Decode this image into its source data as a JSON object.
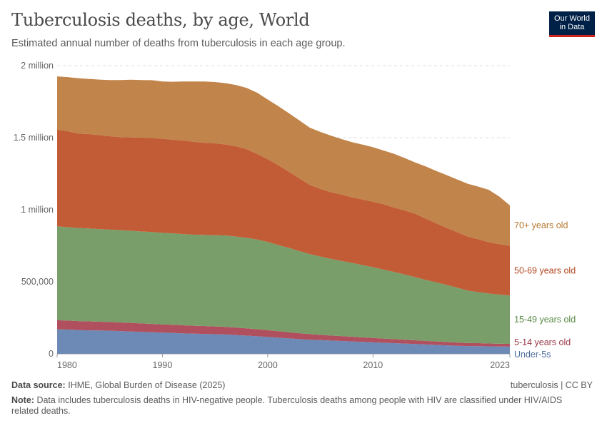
{
  "header": {
    "title": "Tuberculosis deaths, by age, World",
    "subtitle": "Estimated annual number of deaths from tuberculosis in each age group.",
    "logo_line1": "Our World",
    "logo_line2": "in Data"
  },
  "footer": {
    "source_label": "Data source:",
    "source_text": "IHME, Global Burden of Disease (2025)",
    "license": "tuberculosis | CC BY",
    "note_label": "Note:",
    "note_text": "Data includes tuberculosis deaths in HIV-negative people. Tuberculosis deaths among people with HIV are classified under HIV/AIDS related deaths."
  },
  "colors": {
    "under5": "#6d89b6",
    "age5_14": "#b0505e",
    "age15_49": "#7a9e6a",
    "age50_69": "#c25c36",
    "age70plus": "#c1844a"
  },
  "chart_data": {
    "type": "area",
    "stacked": true,
    "title": "Tuberculosis deaths, by age, World",
    "xlabel": "",
    "ylabel": "",
    "xlim": [
      1980,
      2023
    ],
    "ylim": [
      0,
      2000000
    ],
    "x_ticks": [
      1980,
      1990,
      2000,
      2010,
      2023
    ],
    "x_tick_labels": [
      "1980",
      "1990",
      "2000",
      "2010",
      "2023"
    ],
    "y_ticks": [
      0,
      500000,
      1000000,
      1500000,
      2000000
    ],
    "y_tick_labels": [
      "0",
      "500,000",
      "1 million",
      "1.5 million",
      "2 million"
    ],
    "grid": "horizontal dashed",
    "legend": "right, labels at series ends",
    "x": [
      1980,
      1981,
      1982,
      1983,
      1984,
      1985,
      1986,
      1987,
      1988,
      1989,
      1990,
      1991,
      1992,
      1993,
      1994,
      1995,
      1996,
      1997,
      1998,
      1999,
      2000,
      2001,
      2002,
      2003,
      2004,
      2005,
      2006,
      2007,
      2008,
      2009,
      2010,
      2011,
      2012,
      2013,
      2014,
      2015,
      2016,
      2017,
      2018,
      2019,
      2020,
      2021,
      2022,
      2023
    ],
    "series": [
      {
        "name": "Under-5s",
        "color_key": "under5",
        "values": [
          170000,
          168000,
          165000,
          163000,
          162000,
          160000,
          158000,
          155000,
          152000,
          150000,
          147000,
          145000,
          142000,
          140000,
          138000,
          136000,
          134000,
          130000,
          126000,
          122000,
          117000,
          112000,
          107000,
          102000,
          98000,
          95000,
          92000,
          89000,
          86000,
          83000,
          80000,
          77000,
          74000,
          71000,
          68000,
          65000,
          62000,
          59000,
          56000,
          54000,
          53000,
          52000,
          51000,
          50000
        ]
      },
      {
        "name": "5-14 years old",
        "color_key": "age5_14",
        "values": [
          63000,
          63000,
          62000,
          62000,
          61000,
          61000,
          60000,
          60000,
          59000,
          58000,
          57000,
          57000,
          56000,
          55000,
          55000,
          54000,
          53000,
          52000,
          51000,
          49000,
          47000,
          45000,
          43000,
          41000,
          39000,
          37000,
          35000,
          34000,
          33000,
          31000,
          30000,
          29000,
          28000,
          27000,
          26000,
          25000,
          24000,
          23000,
          22000,
          21000,
          21000,
          20000,
          19000,
          19000
        ]
      },
      {
        "name": "15-49 years old",
        "color_key": "age15_49",
        "values": [
          652000,
          648000,
          646000,
          645000,
          643000,
          641000,
          640000,
          639000,
          638000,
          637000,
          636000,
          634000,
          633000,
          632000,
          632000,
          633000,
          634000,
          632000,
          628000,
          622000,
          612000,
          598000,
          585000,
          570000,
          555000,
          543000,
          532000,
          522000,
          512000,
          502000,
          491000,
          479000,
          466000,
          453000,
          438000,
          423000,
          410000,
          396000,
          381000,
          364000,
          354000,
          346000,
          341000,
          336000
        ]
      },
      {
        "name": "50-69 years old",
        "color_key": "age50_69",
        "values": [
          670000,
          666000,
          655000,
          655000,
          652000,
          648000,
          646000,
          648000,
          651000,
          654000,
          652000,
          650000,
          649000,
          644000,
          640000,
          638000,
          632000,
          626000,
          615000,
          594000,
          575000,
          554000,
          530000,
          505000,
          480000,
          470000,
          463000,
          460000,
          455000,
          455000,
          455000,
          453000,
          447000,
          444000,
          441000,
          426000,
          410000,
          396000,
          385000,
          375000,
          367000,
          356000,
          350000,
          345000
        ]
      },
      {
        "name": "70+ years old",
        "color_key": "age70plus",
        "values": [
          370000,
          375000,
          385000,
          383000,
          385000,
          390000,
          396000,
          400000,
          400000,
          400000,
          398000,
          402000,
          410000,
          419000,
          425000,
          425000,
          425000,
          425000,
          425000,
          425000,
          414000,
          410000,
          405000,
          402000,
          397000,
          395000,
          392000,
          386000,
          383000,
          381000,
          378000,
          373000,
          373000,
          364000,
          355000,
          362000,
          363000,
          366000,
          366000,
          366000,
          365000,
          364000,
          330000,
          280000
        ]
      }
    ]
  }
}
